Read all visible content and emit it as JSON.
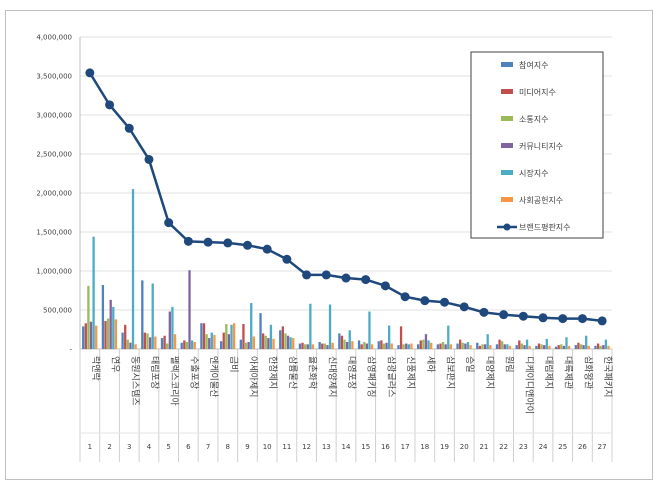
{
  "chart_data": {
    "type": "bar+line",
    "title": "",
    "xlabel": "",
    "ylabel": "",
    "ylim": [
      0,
      4000000
    ],
    "yticks": [
      0,
      500000,
      1000000,
      1500000,
      2000000,
      2500000,
      3000000,
      3500000,
      4000000
    ],
    "ytick_labels": [
      "-",
      "500,000",
      "1,000,000",
      "1,500,000",
      "2,000,000",
      "2,500,000",
      "3,000,000",
      "3,500,000",
      "4,000,000"
    ],
    "legend_position": "top-right",
    "categories": [
      "락앤락",
      "연우",
      "동원시스템즈",
      "태림포장",
      "펠렉스코리아",
      "수출포장",
      "엔케이물산",
      "금비",
      "아세아제지",
      "한창제지",
      "삼륭물산",
      "율촌화학",
      "신대양제지",
      "대영포장",
      "삼영패키징",
      "삼광글라스",
      "신풍제지",
      "세하",
      "삼보판지",
      "승일",
      "대양제지",
      "원림",
      "디케이디앤아이",
      "대림제지",
      "대륙제관",
      "삼화왕관",
      "한국패키지"
    ],
    "indices": [
      "1",
      "2",
      "3",
      "4",
      "5",
      "6",
      "7",
      "8",
      "9",
      "10",
      "11",
      "12",
      "13",
      "14",
      "15",
      "16",
      "17",
      "18",
      "19",
      "20",
      "21",
      "22",
      "23",
      "24",
      "25",
      "26",
      "27"
    ],
    "series": [
      {
        "name": "참여지수",
        "color": "#4f81bd",
        "values": [
          290000,
          820000,
          210000,
          880000,
          140000,
          80000,
          330000,
          100000,
          120000,
          460000,
          240000,
          70000,
          90000,
          200000,
          110000,
          100000,
          50000,
          60000,
          60000,
          70000,
          80000,
          60000,
          50000,
          40000,
          30000,
          50000,
          40000
        ]
      },
      {
        "name": "미디어지수",
        "color": "#c0504d",
        "values": [
          330000,
          360000,
          310000,
          210000,
          170000,
          110000,
          330000,
          210000,
          320000,
          200000,
          290000,
          80000,
          70000,
          170000,
          60000,
          110000,
          290000,
          110000,
          70000,
          120000,
          40000,
          120000,
          110000,
          70000,
          50000,
          80000,
          70000
        ]
      },
      {
        "name": "소통지수",
        "color": "#9bbb59",
        "values": [
          810000,
          390000,
          120000,
          200000,
          70000,
          90000,
          190000,
          320000,
          80000,
          170000,
          200000,
          60000,
          70000,
          120000,
          90000,
          70000,
          60000,
          120000,
          90000,
          80000,
          60000,
          100000,
          70000,
          60000,
          60000,
          60000,
          40000
        ]
      },
      {
        "name": "커뮤니티지수",
        "color": "#8064a2",
        "values": [
          350000,
          630000,
          80000,
          150000,
          480000,
          1010000,
          140000,
          190000,
          90000,
          140000,
          170000,
          60000,
          50000,
          90000,
          70000,
          80000,
          70000,
          190000,
          60000,
          70000,
          60000,
          60000,
          50000,
          50000,
          40000,
          50000,
          50000
        ]
      },
      {
        "name": "시장지수",
        "color": "#4bacc6",
        "values": [
          1440000,
          540000,
          2050000,
          840000,
          540000,
          110000,
          210000,
          310000,
          590000,
          310000,
          150000,
          580000,
          570000,
          240000,
          480000,
          300000,
          60000,
          110000,
          300000,
          90000,
          190000,
          60000,
          120000,
          130000,
          150000,
          170000,
          120000
        ]
      },
      {
        "name": "사회공헌지수",
        "color": "#f79646",
        "values": [
          300000,
          380000,
          60000,
          160000,
          190000,
          90000,
          180000,
          330000,
          160000,
          130000,
          140000,
          60000,
          80000,
          100000,
          60000,
          70000,
          70000,
          80000,
          60000,
          50000,
          50000,
          40000,
          40000,
          40000,
          40000,
          40000,
          40000
        ]
      },
      {
        "name": "브랜드평판지수",
        "color": "#1f497d",
        "values": [
          3540000,
          3130000,
          2830000,
          2430000,
          1620000,
          1380000,
          1370000,
          1360000,
          1330000,
          1280000,
          1150000,
          950000,
          950000,
          910000,
          890000,
          810000,
          670000,
          620000,
          600000,
          540000,
          470000,
          440000,
          420000,
          400000,
          390000,
          390000,
          360000
        ]
      }
    ]
  }
}
